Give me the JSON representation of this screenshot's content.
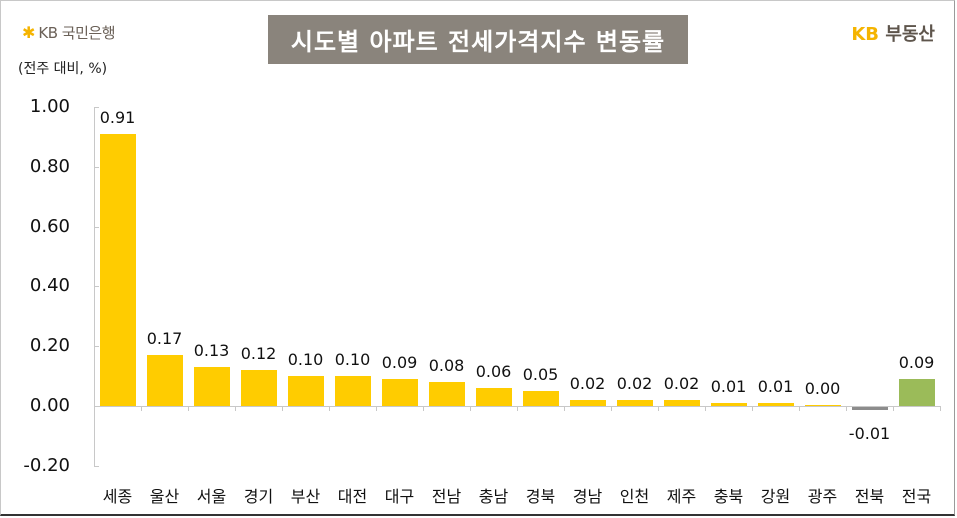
{
  "header": {
    "bank_logo_symbol": "✱",
    "bank_logo_text": "KB 국민은행",
    "unit_label": "(전주 대비, %)",
    "title": "시도별 아파트 전세가격지수 변동률",
    "brand_kb": "KB",
    "brand_name": "부동산"
  },
  "colors": {
    "bar_default": "#ffcc00",
    "bar_negative": "#8c8c8c",
    "bar_national": "#9bbb59",
    "title_bg": "#8a847c",
    "axis": "#c8c8c8",
    "brand_accent": "#f5b400"
  },
  "chart_data": {
    "type": "bar",
    "title": "시도별 아파트 전세가격지수 변동률",
    "ylabel": "(전주 대비, %)",
    "xlabel": "",
    "ylim": [
      -0.2,
      1.0
    ],
    "yticks": [
      "1.00",
      "0.80",
      "0.60",
      "0.40",
      "0.20",
      "0.00",
      "-0.20"
    ],
    "grid": false,
    "legend": null,
    "categories": [
      "세종",
      "울산",
      "서울",
      "경기",
      "부산",
      "대전",
      "대구",
      "전남",
      "충남",
      "경북",
      "경남",
      "인천",
      "제주",
      "충북",
      "강원",
      "광주",
      "전북",
      "전국"
    ],
    "values": [
      0.91,
      0.17,
      0.13,
      0.12,
      0.1,
      0.1,
      0.09,
      0.08,
      0.06,
      0.05,
      0.02,
      0.02,
      0.02,
      0.01,
      0.01,
      0.0,
      -0.01,
      0.09
    ],
    "value_labels": [
      "0.91",
      "0.17",
      "0.13",
      "0.12",
      "0.10",
      "0.10",
      "0.09",
      "0.08",
      "0.06",
      "0.05",
      "0.02",
      "0.02",
      "0.02",
      "0.01",
      "0.01",
      "0.00",
      "-0.01",
      "0.09"
    ],
    "bar_colors": [
      "#ffcc00",
      "#ffcc00",
      "#ffcc00",
      "#ffcc00",
      "#ffcc00",
      "#ffcc00",
      "#ffcc00",
      "#ffcc00",
      "#ffcc00",
      "#ffcc00",
      "#ffcc00",
      "#ffcc00",
      "#ffcc00",
      "#ffcc00",
      "#ffcc00",
      "#ffcc00",
      "#8c8c8c",
      "#9bbb59"
    ]
  }
}
